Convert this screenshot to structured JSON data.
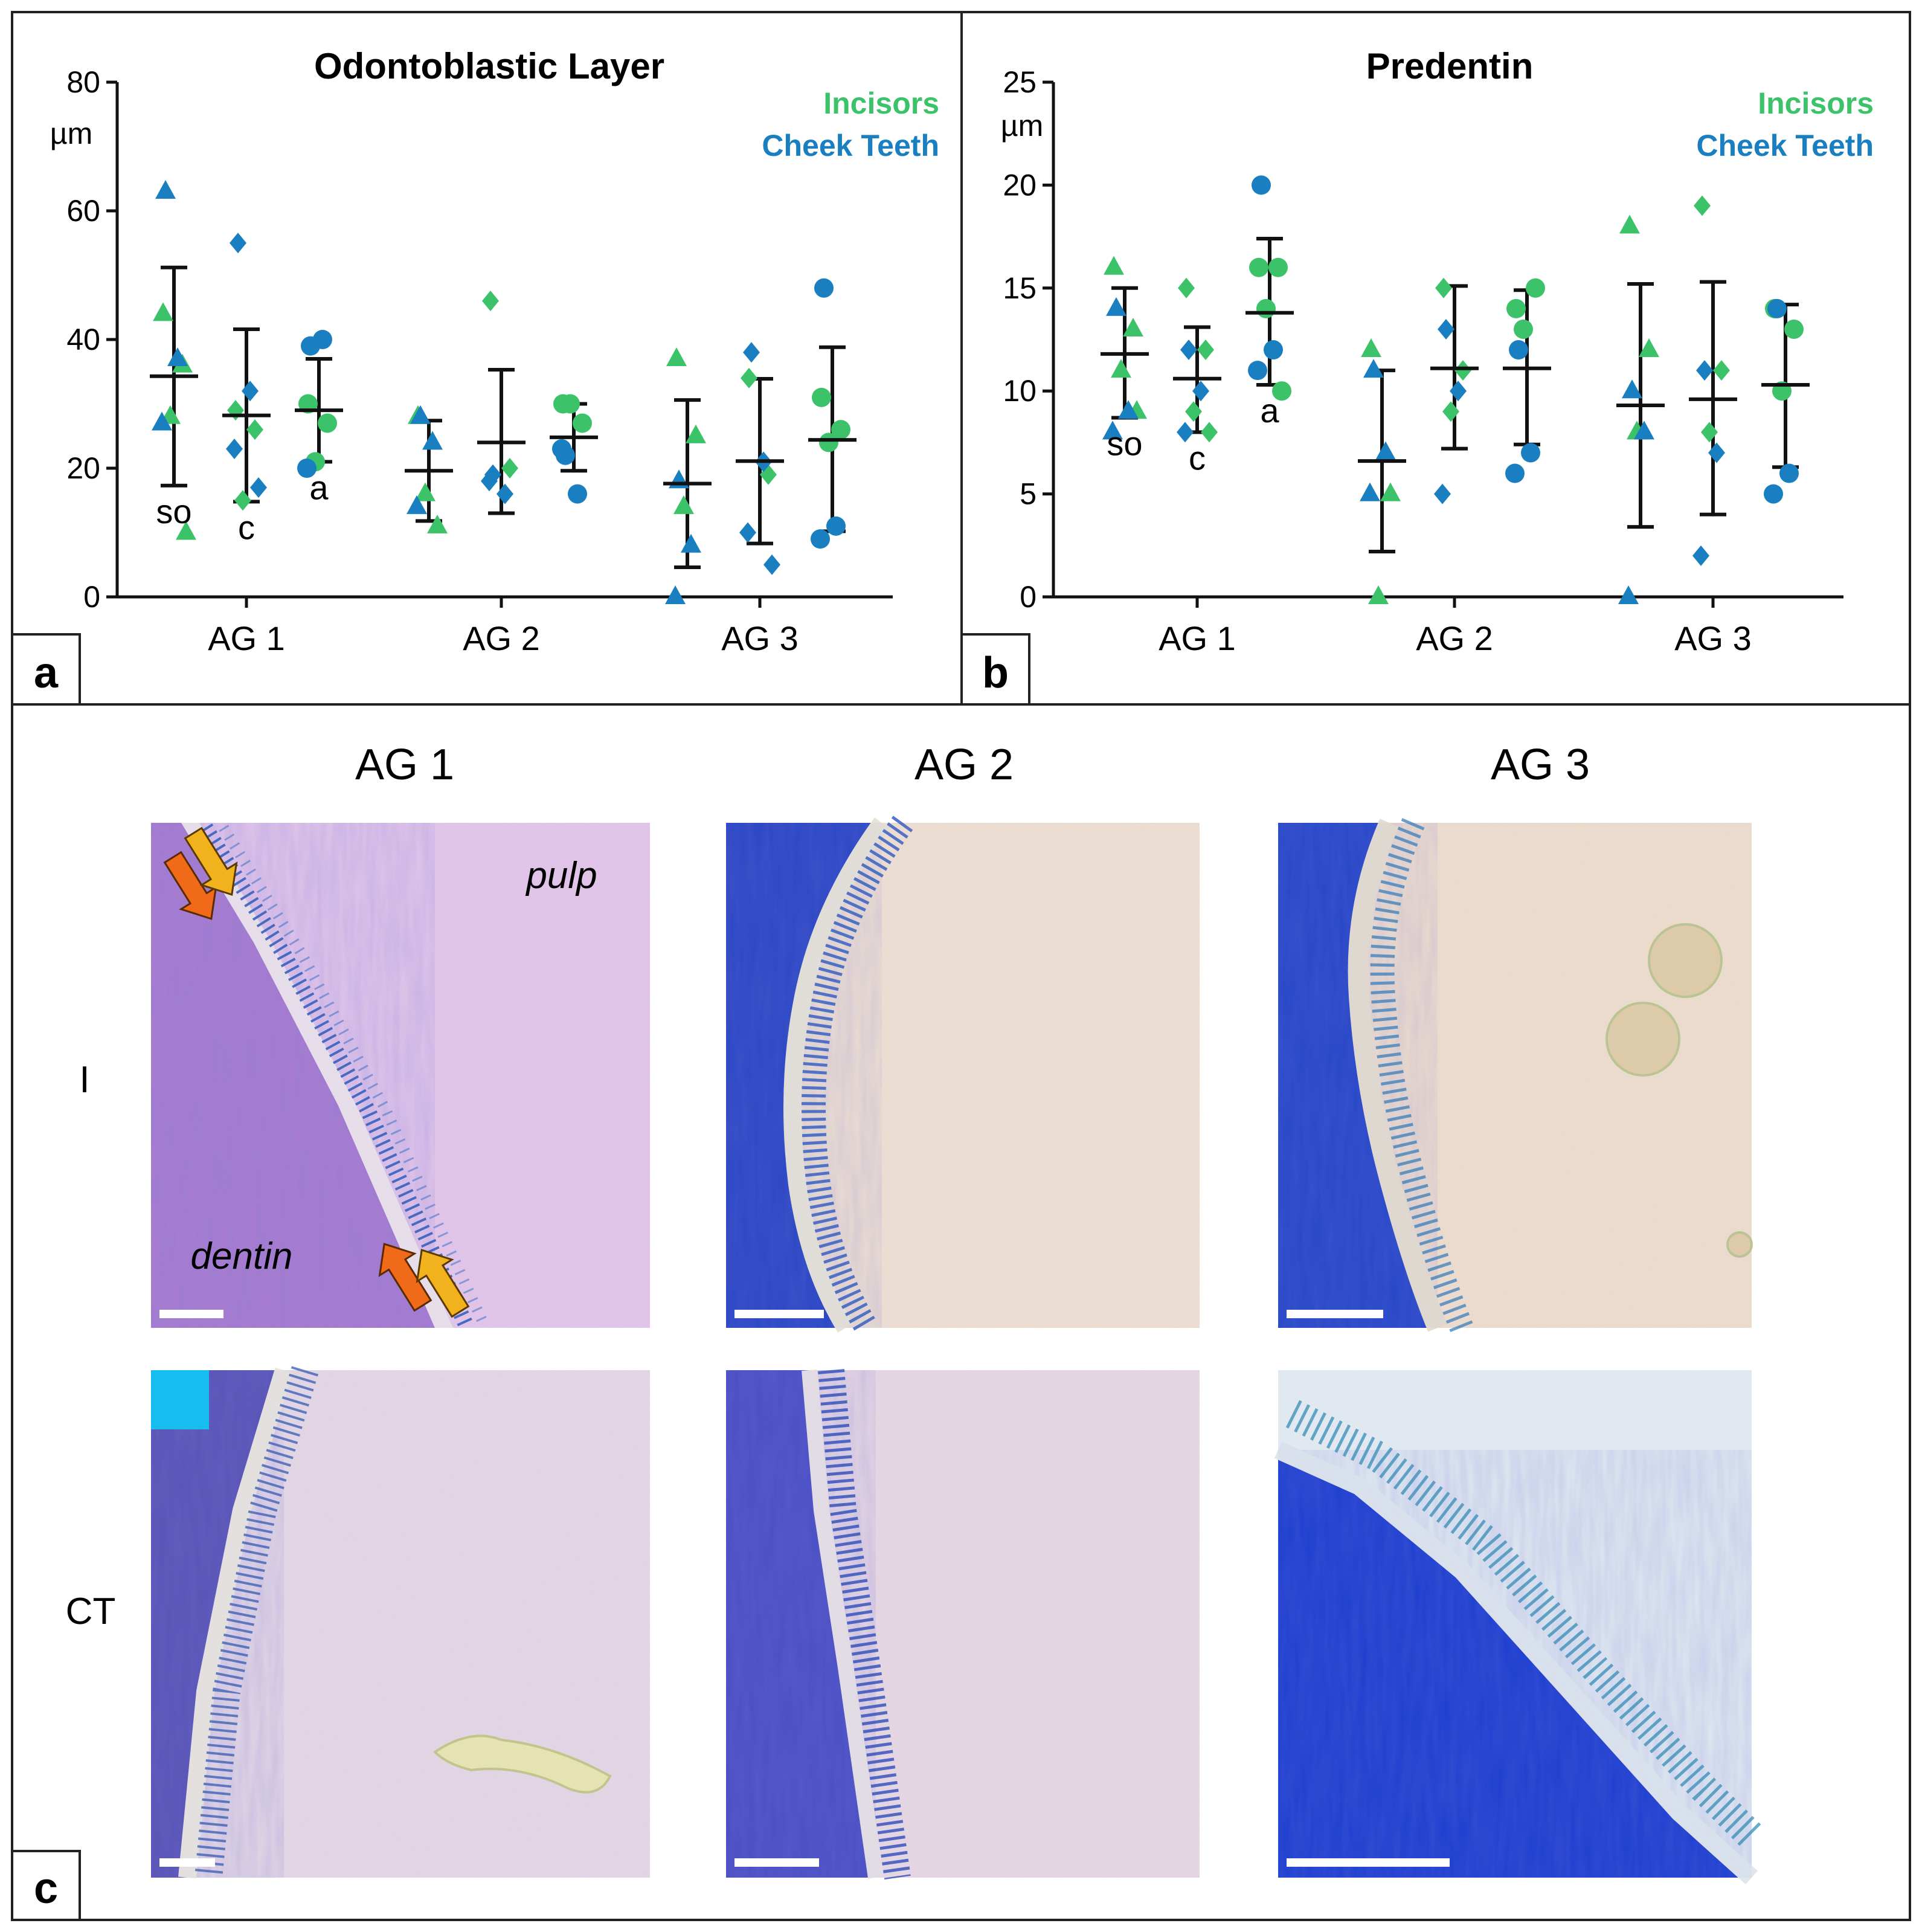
{
  "colors": {
    "incisors": "#3cc36a",
    "cheek_teeth": "#1a7fc0",
    "arrow_orange": "#f06a1a",
    "arrow_yellow": "#f2b21e",
    "marker_cyan": "#16bdf0"
  },
  "legend": {
    "incisors": "Incisors",
    "cheek_teeth": "Cheek Teeth"
  },
  "panel_labels": {
    "a": "a",
    "b": "b",
    "c": "c"
  },
  "chart_data": [
    {
      "type": "scatter",
      "title": "Odontoblastic Layer",
      "ylabel": "µm",
      "ylim": [
        0,
        80
      ],
      "yticks": [
        "0",
        "20",
        "40",
        "60",
        "80"
      ],
      "yticks_values": [
        0,
        20,
        40,
        60,
        80
      ],
      "categories": [
        "AG 1",
        "AG 2",
        "AG 3"
      ],
      "groups": [
        {
          "category": "AG 1",
          "shape": "triangle",
          "mean": 34.3,
          "sd_low": 17.3,
          "sd_high": 51.2,
          "label": "so",
          "incisors": [
            44,
            36,
            28,
            10
          ],
          "cheek_teeth": [
            63,
            37,
            27
          ]
        },
        {
          "category": "AG 1",
          "shape": "diamond",
          "mean": 28.2,
          "sd_low": 14.8,
          "sd_high": 41.6,
          "label": "c",
          "incisors": [
            29,
            26,
            15
          ],
          "cheek_teeth": [
            55,
            32,
            23,
            17
          ]
        },
        {
          "category": "AG 1",
          "shape": "circle",
          "mean": 29.0,
          "sd_low": 21.0,
          "sd_high": 37.0,
          "label": "a",
          "incisors": [
            30,
            27,
            21
          ],
          "cheek_teeth": [
            39,
            40,
            20
          ]
        },
        {
          "category": "AG 2",
          "shape": "triangle",
          "mean": 19.6,
          "sd_low": 11.8,
          "sd_high": 27.4,
          "label": "",
          "incisors": [
            28,
            11,
            16
          ],
          "cheek_teeth": [
            28,
            24,
            14
          ]
        },
        {
          "category": "AG 2",
          "shape": "diamond",
          "mean": 24.0,
          "sd_low": 13.0,
          "sd_high": 35.3,
          "label": "",
          "incisors": [
            46,
            20
          ],
          "cheek_teeth": [
            19,
            16,
            18
          ]
        },
        {
          "category": "AG 2",
          "shape": "circle",
          "mean": 24.8,
          "sd_low": 19.6,
          "sd_high": 30.0,
          "label": "",
          "incisors": [
            30,
            27,
            30
          ],
          "cheek_teeth": [
            22,
            16,
            23
          ]
        },
        {
          "category": "AG 3",
          "shape": "triangle",
          "mean": 17.6,
          "sd_low": 4.6,
          "sd_high": 30.6,
          "label": "",
          "incisors": [
            37,
            25,
            14
          ],
          "cheek_teeth": [
            18,
            8,
            0
          ]
        },
        {
          "category": "AG 3",
          "shape": "diamond",
          "mean": 21.1,
          "sd_low": 8.3,
          "sd_high": 33.9,
          "label": "",
          "incisors": [
            34,
            19
          ],
          "cheek_teeth": [
            38,
            21,
            10,
            5
          ]
        },
        {
          "category": "AG 3",
          "shape": "circle",
          "mean": 24.4,
          "sd_low": 10.2,
          "sd_high": 38.8,
          "label": "",
          "incisors": [
            31,
            26,
            24
          ],
          "cheek_teeth": [
            48,
            11,
            9
          ]
        }
      ]
    },
    {
      "type": "scatter",
      "title": "Predentin",
      "ylabel": "µm",
      "ylim": [
        0,
        25
      ],
      "yticks": [
        "0",
        "5",
        "10",
        "15",
        "20",
        "25"
      ],
      "yticks_values": [
        0,
        5,
        10,
        15,
        20,
        25
      ],
      "categories": [
        "AG 1",
        "AG 2",
        "AG 3"
      ],
      "groups": [
        {
          "category": "AG 1",
          "shape": "triangle",
          "mean": 11.8,
          "sd_low": 8.7,
          "sd_high": 15.0,
          "label": "so",
          "incisors": [
            16,
            13,
            11,
            9
          ],
          "cheek_teeth": [
            14,
            9,
            8
          ]
        },
        {
          "category": "AG 1",
          "shape": "diamond",
          "mean": 10.6,
          "sd_low": 8.0,
          "sd_high": 13.1,
          "label": "c",
          "incisors": [
            15,
            12,
            9,
            8
          ],
          "cheek_teeth": [
            12,
            10,
            8
          ]
        },
        {
          "category": "AG 1",
          "shape": "circle",
          "mean": 13.8,
          "sd_low": 10.3,
          "sd_high": 17.4,
          "label": "a",
          "incisors": [
            16,
            16,
            14,
            10
          ],
          "cheek_teeth": [
            20,
            12,
            11
          ]
        },
        {
          "category": "AG 2",
          "shape": "triangle",
          "mean": 6.6,
          "sd_low": 2.2,
          "sd_high": 11.0,
          "label": "",
          "incisors": [
            12,
            5,
            0
          ],
          "cheek_teeth": [
            11,
            7,
            5
          ]
        },
        {
          "category": "AG 2",
          "shape": "diamond",
          "mean": 11.1,
          "sd_low": 7.2,
          "sd_high": 15.1,
          "label": "",
          "incisors": [
            15,
            11,
            9
          ],
          "cheek_teeth": [
            13,
            10,
            5
          ]
        },
        {
          "category": "AG 2",
          "shape": "circle",
          "mean": 11.1,
          "sd_low": 7.4,
          "sd_high": 14.9,
          "label": "",
          "incisors": [
            14,
            15,
            13
          ],
          "cheek_teeth": [
            12,
            7,
            6
          ]
        },
        {
          "category": "AG 3",
          "shape": "triangle",
          "mean": 9.3,
          "sd_low": 3.4,
          "sd_high": 15.2,
          "label": "",
          "incisors": [
            18,
            12,
            8
          ],
          "cheek_teeth": [
            10,
            8,
            0
          ]
        },
        {
          "category": "AG 3",
          "shape": "diamond",
          "mean": 9.6,
          "sd_low": 4.0,
          "sd_high": 15.3,
          "label": "",
          "incisors": [
            19,
            11,
            8
          ],
          "cheek_teeth": [
            11,
            7,
            2
          ]
        },
        {
          "category": "AG 3",
          "shape": "circle",
          "mean": 10.3,
          "sd_low": 6.3,
          "sd_high": 14.2,
          "label": "",
          "incisors": [
            14,
            13,
            10
          ],
          "cheek_teeth": [
            14,
            6,
            5
          ]
        }
      ]
    }
  ],
  "micrographs": {
    "columns": [
      "AG 1",
      "AG 2",
      "AG 3"
    ],
    "rows": [
      "I",
      "CT"
    ],
    "annotations": {
      "pulp": "pulp",
      "dentin": "dentin"
    }
  }
}
